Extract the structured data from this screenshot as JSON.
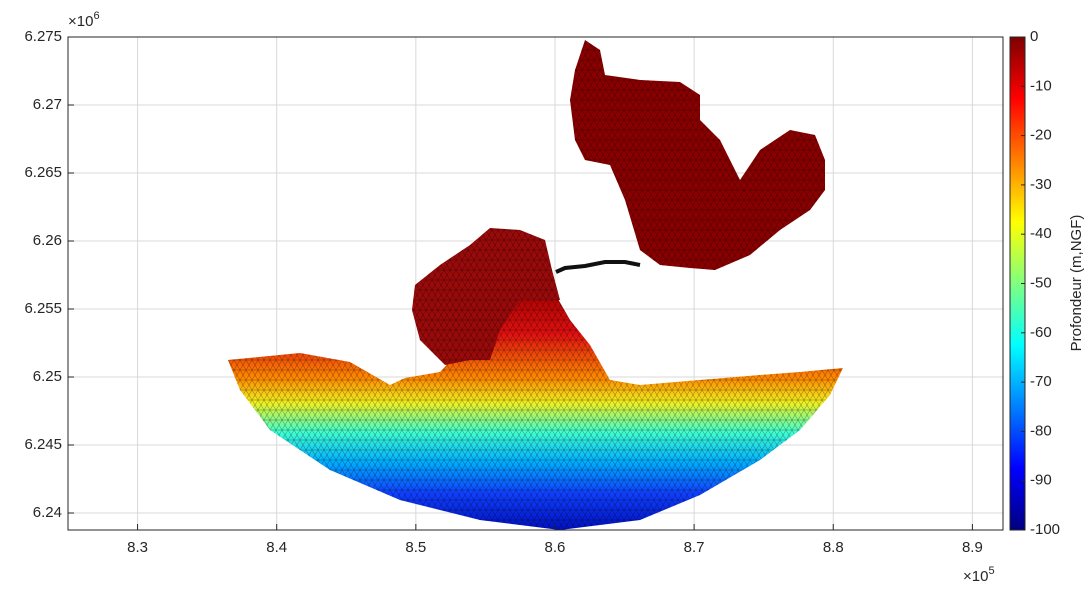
{
  "chart_data": {
    "type": "mesh",
    "xlim": [
      8.25,
      8.922
    ],
    "xticks": [
      8.3,
      8.4,
      8.5,
      8.6,
      8.7,
      8.8,
      8.9
    ],
    "ylim": [
      6.23875,
      6.275
    ],
    "yticks": [
      6.24,
      6.245,
      6.25,
      6.255,
      6.26,
      6.265,
      6.27,
      6.275
    ],
    "x_multiplier": {
      "base": "×10",
      "exponent": "5"
    },
    "y_multiplier": {
      "base": "×10",
      "exponent": "6"
    },
    "grid": true,
    "colorbar": {
      "label": "Profondeur (m,NGF)",
      "clim": [
        -100,
        0
      ],
      "colormap": "jet",
      "ticks": [
        0,
        -10,
        -20,
        -30,
        -40,
        -50,
        -60,
        -70,
        -80,
        -90,
        -100
      ]
    }
  }
}
